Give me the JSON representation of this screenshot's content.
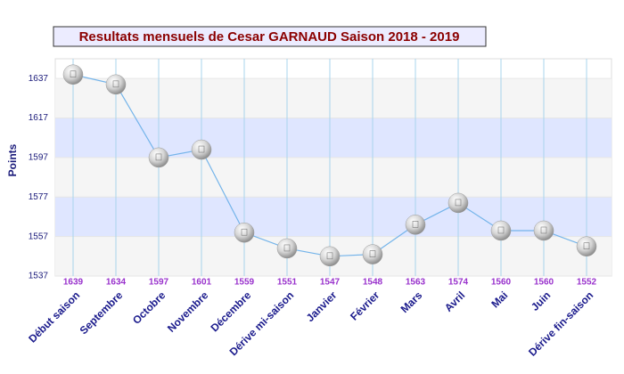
{
  "chart_data": {
    "type": "line",
    "title": "Resultats mensuels de Cesar GARNAUD Saison 2018 - 2019",
    "y_label": "Points",
    "categories": [
      "Début saison",
      "Septembre",
      "Octobre",
      "Novembre",
      "Décembre",
      "Dérive mi-saison",
      "Janvier",
      "Février",
      "Mars",
      "Avril",
      "Mai",
      "Juin",
      "Dérive fin-saison"
    ],
    "values": [
      1639,
      1634,
      1597,
      1601,
      1559,
      1551,
      1547,
      1548,
      1563,
      1574,
      1560,
      1560,
      1552
    ],
    "color": "#74b4ea",
    "ylim": [
      1537,
      1647
    ],
    "yticks": [
      1537,
      1557,
      1577,
      1597,
      1617,
      1637
    ],
    "grid": true
  }
}
